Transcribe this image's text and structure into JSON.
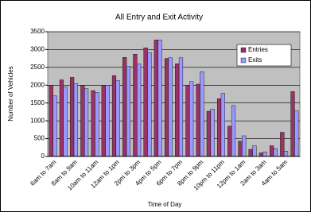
{
  "chart_data": {
    "type": "bar",
    "title": "All Entry and Exit Activity",
    "x_label": "Time of Day",
    "y_label": "Number of Vehicles",
    "categories": [
      "6am to 7am",
      null,
      "8am to 9am",
      null,
      "10am to 11am",
      null,
      "12am to 1pm",
      null,
      "2pm to 3pm",
      null,
      "4pm to 5pm",
      null,
      "6pm to 7pm",
      null,
      "8pm to 9pm",
      null,
      "10pm to 11pm",
      null,
      "12pm to 1am",
      null,
      "2am to 3am",
      null,
      "4am to 5am",
      null
    ],
    "series": [
      {
        "name": "Entries",
        "color": "#993366",
        "values": [
          2000,
          2150,
          2220,
          2000,
          1850,
          2000,
          2270,
          2780,
          2870,
          3050,
          3270,
          2750,
          2600,
          2000,
          2030,
          1270,
          1620,
          850,
          430,
          200,
          100,
          300,
          680,
          1820
        ]
      },
      {
        "name": "Exits",
        "color": "#9999ff",
        "values": [
          1700,
          1950,
          2050,
          1900,
          1800,
          2000,
          2130,
          2530,
          2600,
          2920,
          3270,
          2770,
          2770,
          2100,
          2380,
          1330,
          1770,
          1430,
          580,
          300,
          130,
          220,
          150,
          1280
        ]
      }
    ],
    "ylim": [
      0,
      3500
    ],
    "yticks": [
      0,
      500,
      1000,
      1500,
      2000,
      2500,
      3000,
      3500
    ],
    "grid": true,
    "legend": "top-right"
  }
}
